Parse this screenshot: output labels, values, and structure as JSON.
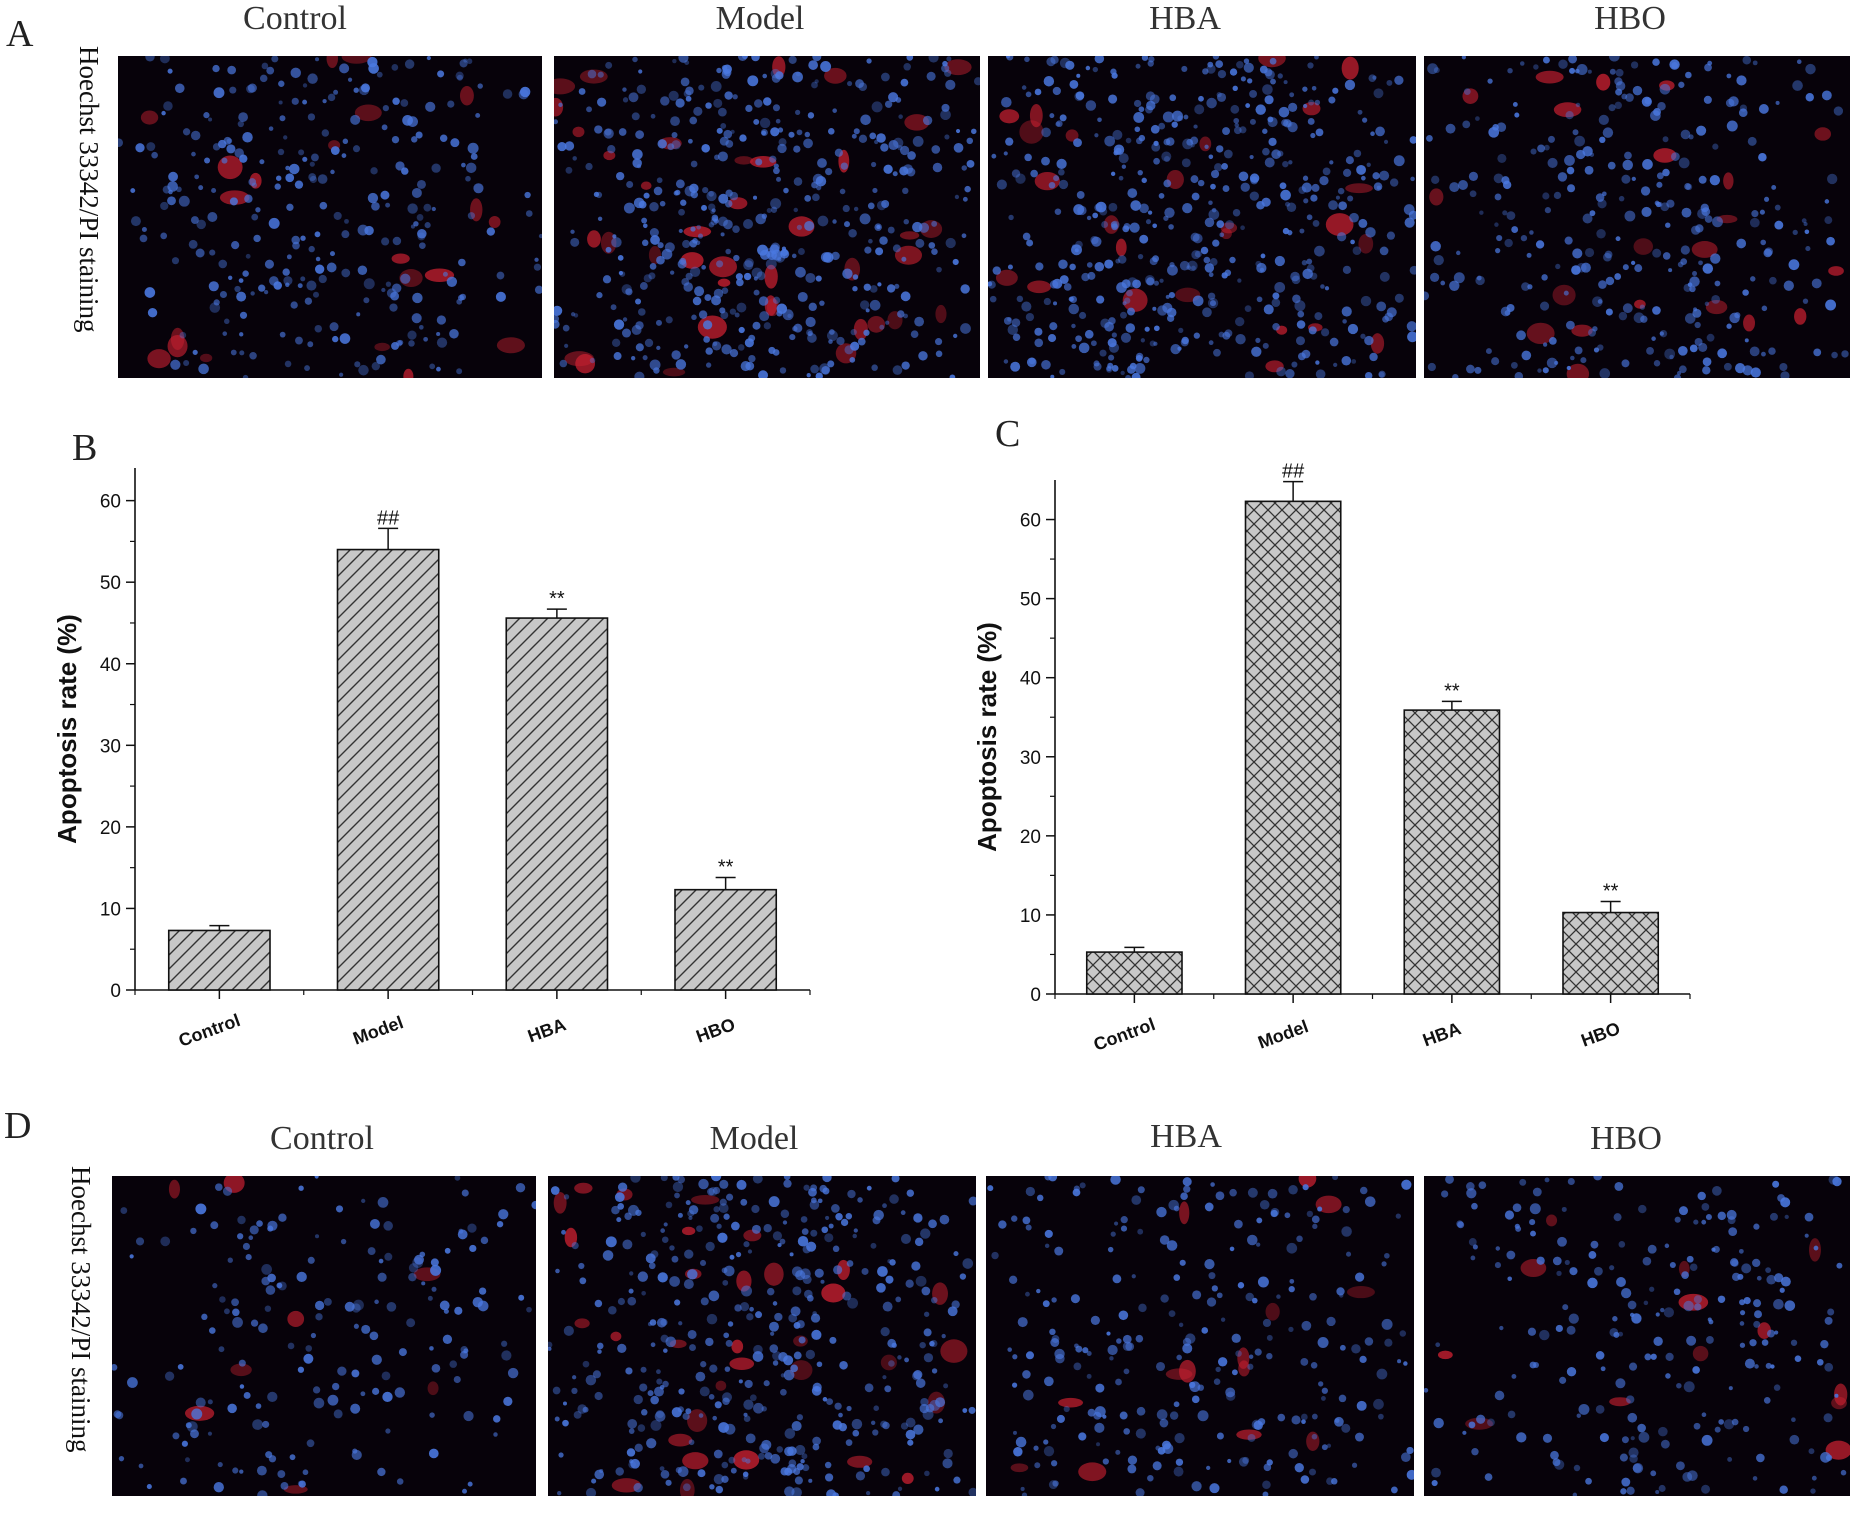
{
  "panels": {
    "A": {
      "letter": "A",
      "row_label": "Hoechst 33342/PI staining",
      "columns": [
        "Control",
        "Model",
        "HBA",
        "HBO"
      ],
      "red_density": [
        0.3,
        0.55,
        0.35,
        0.3
      ],
      "blue_density": [
        0.55,
        0.9,
        0.95,
        0.6
      ]
    },
    "B": {
      "letter": "B"
    },
    "C": {
      "letter": "C"
    },
    "D": {
      "letter": "D",
      "row_label": "Hoechst 33342/PI staining",
      "columns": [
        "Control",
        "Model",
        "HBA",
        "HBO"
      ],
      "red_density": [
        0.12,
        0.45,
        0.2,
        0.18
      ],
      "blue_density": [
        0.35,
        0.8,
        0.5,
        0.45
      ]
    }
  },
  "colors": {
    "bar_fill": "#c8c8c8",
    "bar_stroke": "#111111",
    "hoechst_blue": "#4a78e0",
    "pi_red": "#c82030"
  },
  "chart_data": [
    {
      "panel": "B",
      "type": "bar",
      "pattern": "diagonal-hatch",
      "categories": [
        "Control",
        "Model",
        "HBA",
        "HBO"
      ],
      "values": [
        7.3,
        54.0,
        45.6,
        12.3
      ],
      "errors": [
        0.6,
        2.6,
        1.1,
        1.5
      ],
      "annotations": [
        "",
        "##",
        "**",
        "**"
      ],
      "ylabel": "Apoptosis rate (%)",
      "ylim": [
        0,
        64
      ],
      "yticks": [
        0,
        10,
        20,
        30,
        40,
        50,
        60
      ],
      "grid": false
    },
    {
      "panel": "C",
      "type": "bar",
      "pattern": "cross-hatch",
      "categories": [
        "Control",
        "Model",
        "HBA",
        "HBO"
      ],
      "values": [
        5.3,
        62.3,
        35.9,
        10.3
      ],
      "errors": [
        0.6,
        2.5,
        1.1,
        1.4
      ],
      "annotations": [
        "",
        "##",
        "**",
        "**"
      ],
      "ylabel": "Apoptosis rate (%)",
      "ylim": [
        0,
        65
      ],
      "yticks": [
        0,
        10,
        20,
        30,
        40,
        50,
        60
      ],
      "grid": false
    }
  ]
}
